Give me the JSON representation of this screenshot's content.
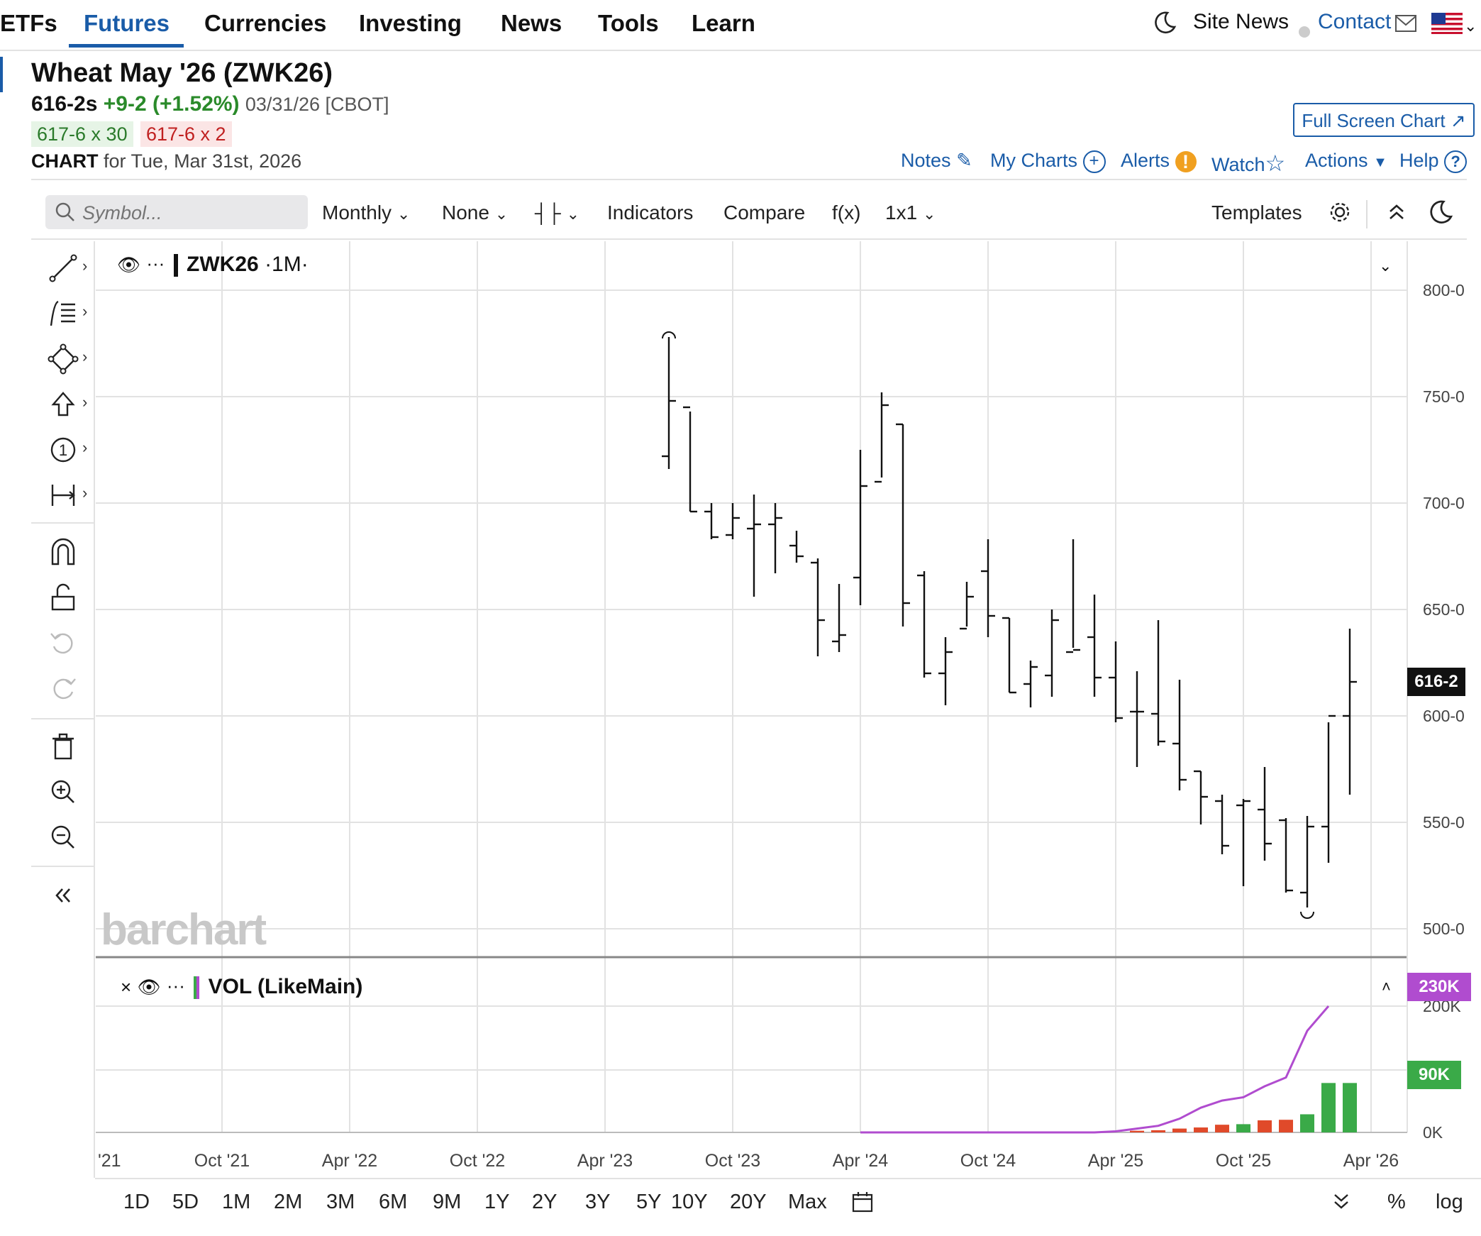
{
  "nav": {
    "items": [
      "ETFs",
      "Futures",
      "Currencies",
      "Investing",
      "News",
      "Tools",
      "Learn"
    ],
    "active": "Futures",
    "site_news": "Site News",
    "contact": "Contact"
  },
  "header": {
    "title": "Wheat May '26 (ZWK26)",
    "last": "616-2s",
    "change": "+9-2 (+1.52%)",
    "meta": "03/31/26 [CBOT]",
    "bid": "617-6 x 30",
    "ask": "617-6 x 2",
    "chart_label": "CHART",
    "chart_for": "for Tue, Mar 31st, 2026",
    "full_screen": "Full Screen Chart",
    "links": {
      "notes": "Notes",
      "my_charts": "My Charts",
      "alerts": "Alerts",
      "watch": "Watch",
      "actions": "Actions",
      "help": "Help"
    }
  },
  "toolbar": {
    "symbol_placeholder": "Symbol...",
    "period": "Monthly",
    "overlay": "None",
    "indicators": "Indicators",
    "compare": "Compare",
    "fx": "f(x)",
    "layout": "1x1",
    "templates": "Templates"
  },
  "legend": {
    "symbol": "ZWK26",
    "interval": "·1M·",
    "volume": "VOL (LikeMain)"
  },
  "watermark": "barchart",
  "tags": {
    "price": "616-2",
    "vol_line": "230K",
    "vol_bar": "90K"
  },
  "colors": {
    "accent": "#1a5ca8",
    "up": "#3aaa48",
    "down": "#e04a2a",
    "vol_line": "#b04ccf"
  },
  "periods": [
    "1D",
    "5D",
    "1M",
    "2M",
    "3M",
    "6M",
    "9M",
    "1Y",
    "2Y",
    "3Y",
    "5Y",
    "10Y",
    "20Y",
    "Max"
  ],
  "bottom_right": {
    "percent": "%",
    "log": "log"
  },
  "chart_data": {
    "type": "ohlc",
    "symbol": "ZWK26",
    "interval": "Monthly",
    "x_ticks": [
      "'21",
      "Oct '21",
      "Apr '22",
      "Oct '22",
      "Apr '23",
      "Oct '23",
      "Apr '24",
      "Oct '24",
      "Apr '25",
      "Oct '25",
      "Apr '26"
    ],
    "y_ticks": [
      "800-0",
      "750-0",
      "700-0",
      "650-0",
      "600-0",
      "550-0",
      "500-0"
    ],
    "ylim": [
      500,
      800
    ],
    "vol_ticks": [
      "200K",
      "0K"
    ],
    "bars": [
      {
        "month": "2023-07",
        "o": 722,
        "h": 778,
        "l": 716,
        "c": 748
      },
      {
        "month": "2023-08",
        "o": 745,
        "h": 743,
        "l": 696,
        "c": 696
      },
      {
        "month": "2023-09",
        "o": 696,
        "h": 700,
        "l": 683,
        "c": 684
      },
      {
        "month": "2023-10",
        "o": 685,
        "h": 700,
        "l": 683,
        "c": 693
      },
      {
        "month": "2023-11",
        "o": 688,
        "h": 704,
        "l": 656,
        "c": 690
      },
      {
        "month": "2023-12",
        "o": 690,
        "h": 700,
        "l": 667,
        "c": 693
      },
      {
        "month": "2024-01",
        "o": 680,
        "h": 687,
        "l": 672,
        "c": 675
      },
      {
        "month": "2024-02",
        "o": 672,
        "h": 674,
        "l": 628,
        "c": 645
      },
      {
        "month": "2024-03",
        "o": 635,
        "h": 662,
        "l": 630,
        "c": 638
      },
      {
        "month": "2024-04",
        "o": 665,
        "h": 725,
        "l": 652,
        "c": 708
      },
      {
        "month": "2024-05",
        "o": 710,
        "h": 752,
        "l": 712,
        "c": 746
      },
      {
        "month": "2024-06",
        "o": 737,
        "h": 737,
        "l": 642,
        "c": 653
      },
      {
        "month": "2024-07",
        "o": 666,
        "h": 668,
        "l": 618,
        "c": 620
      },
      {
        "month": "2024-08",
        "o": 620,
        "h": 637,
        "l": 605,
        "c": 630
      },
      {
        "month": "2024-09",
        "o": 641,
        "h": 663,
        "l": 642,
        "c": 656
      },
      {
        "month": "2024-10",
        "o": 668,
        "h": 683,
        "l": 637,
        "c": 647
      },
      {
        "month": "2024-11",
        "o": 646,
        "h": 646,
        "l": 611,
        "c": 611
      },
      {
        "month": "2024-12",
        "o": 615,
        "h": 626,
        "l": 604,
        "c": 623
      },
      {
        "month": "2025-01",
        "o": 619,
        "h": 650,
        "l": 609,
        "c": 645
      },
      {
        "month": "2025-02",
        "o": 630,
        "h": 683,
        "l": 632,
        "c": 631
      },
      {
        "month": "2025-03",
        "o": 637,
        "h": 657,
        "l": 609,
        "c": 618
      },
      {
        "month": "2025-04",
        "o": 618,
        "h": 635,
        "l": 597,
        "c": 599
      },
      {
        "month": "2025-05",
        "o": 602,
        "h": 621,
        "l": 576,
        "c": 602
      },
      {
        "month": "2025-06",
        "o": 601,
        "h": 645,
        "l": 586,
        "c": 588
      },
      {
        "month": "2025-07",
        "o": 587,
        "h": 617,
        "l": 565,
        "c": 570
      },
      {
        "month": "2025-08",
        "o": 574,
        "h": 574,
        "l": 549,
        "c": 562
      },
      {
        "month": "2025-09",
        "o": 560,
        "h": 563,
        "l": 535,
        "c": 539
      },
      {
        "month": "2025-10",
        "o": 558,
        "h": 561,
        "l": 520,
        "c": 560
      },
      {
        "month": "2025-11",
        "o": 556,
        "h": 576,
        "l": 532,
        "c": 540
      },
      {
        "month": "2025-12",
        "o": 551,
        "h": 552,
        "l": 517,
        "c": 518
      },
      {
        "month": "2026-01",
        "o": 517,
        "h": 553,
        "l": 510,
        "c": 548
      },
      {
        "month": "2026-02",
        "o": 548,
        "h": 597,
        "l": 531,
        "c": 600
      },
      {
        "month": "2026-03",
        "o": 600,
        "h": 641,
        "l": 563,
        "c": 616
      }
    ],
    "volume": {
      "bars": [
        {
          "month": "2025-05",
          "v": 3,
          "dir": "down"
        },
        {
          "month": "2025-06",
          "v": 4,
          "dir": "down"
        },
        {
          "month": "2025-07",
          "v": 7,
          "dir": "down"
        },
        {
          "month": "2025-08",
          "v": 9,
          "dir": "down"
        },
        {
          "month": "2025-09",
          "v": 14,
          "dir": "down"
        },
        {
          "month": "2025-10",
          "v": 15,
          "dir": "up"
        },
        {
          "month": "2025-11",
          "v": 22,
          "dir": "down"
        },
        {
          "month": "2025-12",
          "v": 23,
          "dir": "down"
        },
        {
          "month": "2026-01",
          "v": 33,
          "dir": "up"
        },
        {
          "month": "2026-02",
          "v": 90,
          "dir": "up"
        },
        {
          "month": "2026-03",
          "v": 90,
          "dir": "up"
        }
      ],
      "cumulative_line": [
        {
          "month": "2024-04",
          "v": 0
        },
        {
          "month": "2025-03",
          "v": 0
        },
        {
          "month": "2025-04",
          "v": 2
        },
        {
          "month": "2025-05",
          "v": 7
        },
        {
          "month": "2025-06",
          "v": 12
        },
        {
          "month": "2025-07",
          "v": 25
        },
        {
          "month": "2025-08",
          "v": 45
        },
        {
          "month": "2025-09",
          "v": 58
        },
        {
          "month": "2025-10",
          "v": 64
        },
        {
          "month": "2025-11",
          "v": 84
        },
        {
          "month": "2025-12",
          "v": 100
        },
        {
          "month": "2026-01",
          "v": 185
        },
        {
          "month": "2026-02",
          "v": 230
        }
      ]
    }
  }
}
